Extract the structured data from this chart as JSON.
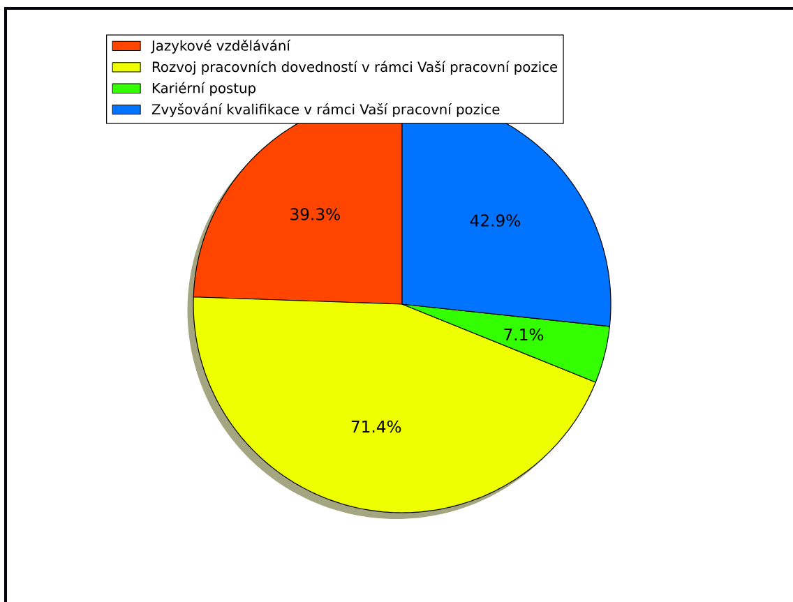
{
  "chart_data": {
    "type": "pie",
    "categories": [
      "Jazykové vzdělávání",
      "Rozvoj pracovních dovedností v rámci Vaší pracovní pozice",
      "Kariérní postup",
      "Zvyšování kvalifikace v rámci Vaší pracovní pozice"
    ],
    "values": [
      39.3,
      71.4,
      7.1,
      42.9
    ],
    "colors": [
      "#ff4500",
      "#eeff00",
      "#33ff00",
      "#0073ff"
    ],
    "value_labels": [
      "39.3%",
      "71.4%",
      "7.1%",
      "42.9%"
    ],
    "legend": "top left"
  }
}
